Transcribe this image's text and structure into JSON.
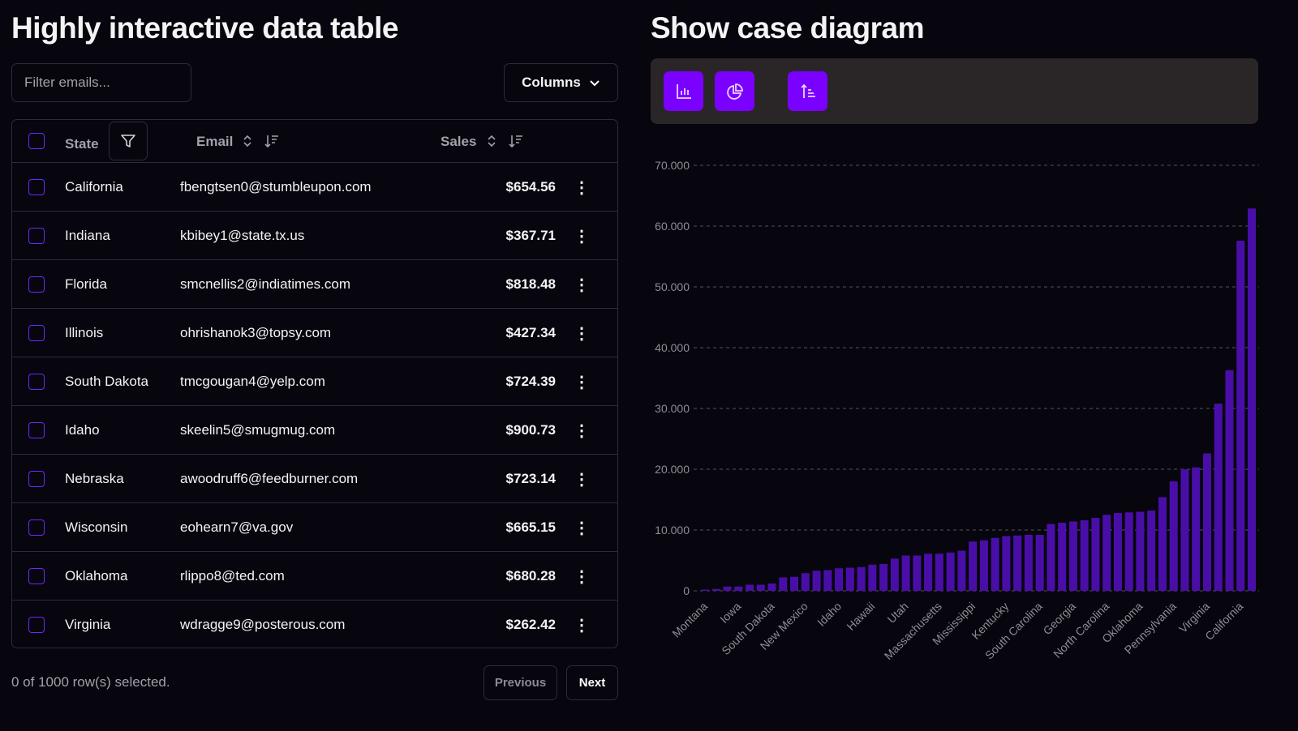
{
  "table_section": {
    "title": "Highly interactive data table",
    "filter_placeholder": "Filter emails...",
    "columns_label": "Columns",
    "headers": {
      "state": "State",
      "email": "Email",
      "sales": "Sales"
    },
    "rows": [
      {
        "state": "California",
        "email": "fbengtsen0@stumbleupon.com",
        "sales": "$654.56"
      },
      {
        "state": "Indiana",
        "email": "kbibey1@state.tx.us",
        "sales": "$367.71"
      },
      {
        "state": "Florida",
        "email": "smcnellis2@indiatimes.com",
        "sales": "$818.48"
      },
      {
        "state": "Illinois",
        "email": "ohrishanok3@topsy.com",
        "sales": "$427.34"
      },
      {
        "state": "South Dakota",
        "email": "tmcgougan4@yelp.com",
        "sales": "$724.39"
      },
      {
        "state": "Idaho",
        "email": "skeelin5@smugmug.com",
        "sales": "$900.73"
      },
      {
        "state": "Nebraska",
        "email": "awoodruff6@feedburner.com",
        "sales": "$723.14"
      },
      {
        "state": "Wisconsin",
        "email": "eohearn7@va.gov",
        "sales": "$665.15"
      },
      {
        "state": "Oklahoma",
        "email": "rlippo8@ted.com",
        "sales": "$680.28"
      },
      {
        "state": "Virginia",
        "email": "wdragge9@posterous.com",
        "sales": "$262.42"
      }
    ],
    "selection_status": "0 of 1000 row(s) selected.",
    "previous_label": "Previous",
    "next_label": "Next"
  },
  "diagram_section": {
    "title": "Show case diagram",
    "toolbar": [
      "bar-chart-icon",
      "pie-chart-icon",
      "sort-ascending-icon"
    ],
    "accent": "#7a00ff"
  },
  "chart_data": {
    "type": "bar",
    "bar_color": "#4a0ea8",
    "ylim": [
      0,
      70000
    ],
    "yticks": [
      "0",
      "10.000",
      "20.000",
      "30.000",
      "40.000",
      "50.000",
      "60.000",
      "70.000"
    ],
    "grid": true,
    "x_tick_labels": [
      "Montana",
      "Iowa",
      "South Dakota",
      "New Mexico",
      "Idaho",
      "Hawaii",
      "Utah",
      "Massachusetts",
      "Mississippi",
      "Kentucky",
      "South Carolina",
      "Georgia",
      "North Carolina",
      "Oklahoma",
      "Pennsylvania",
      "Virginia",
      "California"
    ],
    "x_tick_every": 3,
    "values": [
      200,
      300,
      700,
      700,
      1000,
      1000,
      1200,
      2200,
      2300,
      2900,
      3300,
      3400,
      3700,
      3800,
      3900,
      4300,
      4400,
      5300,
      5800,
      5800,
      6100,
      6100,
      6300,
      6600,
      8100,
      8300,
      8700,
      9000,
      9100,
      9200,
      9200,
      11000,
      11200,
      11400,
      11600,
      12000,
      12500,
      12800,
      12900,
      13000,
      13200,
      15400,
      18000,
      20000,
      20300,
      22600,
      30800,
      36300,
      57600,
      62900
    ]
  }
}
